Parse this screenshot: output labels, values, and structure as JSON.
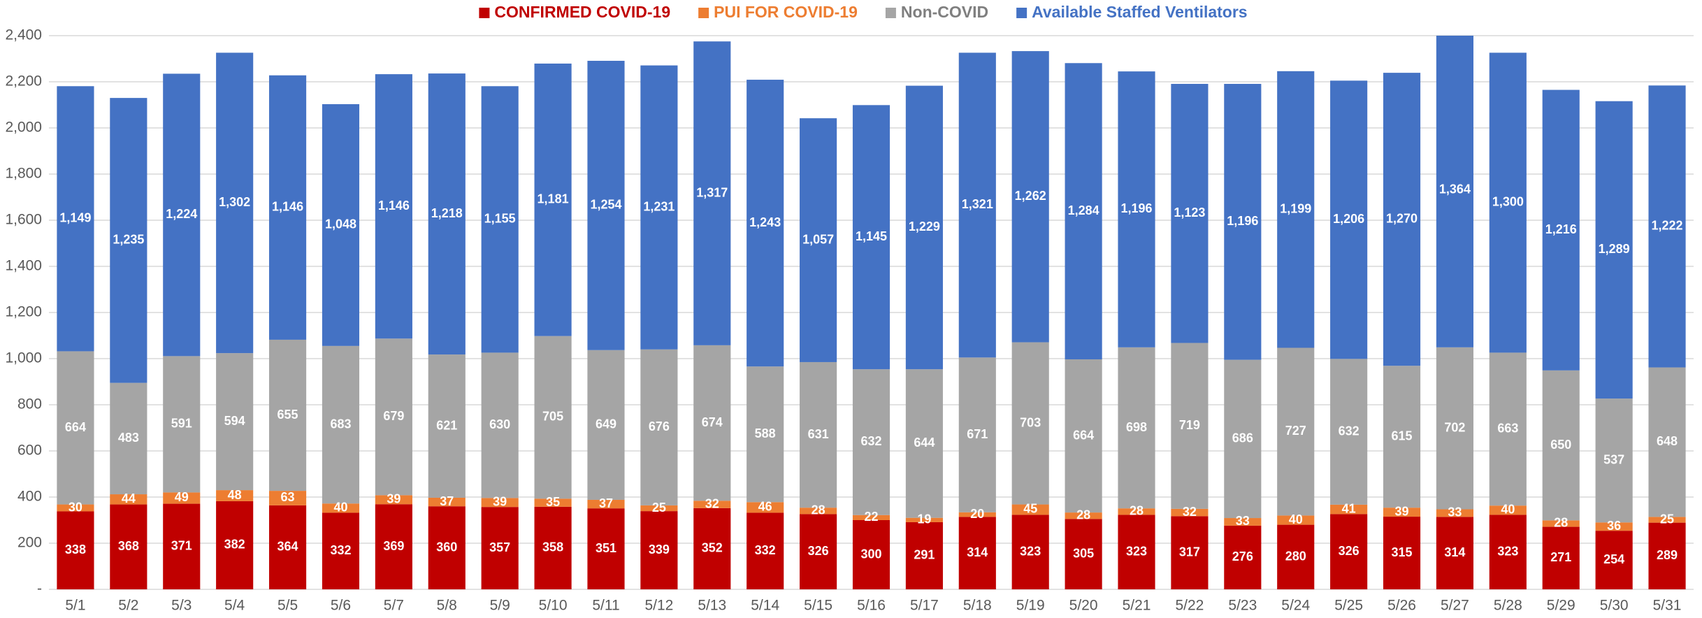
{
  "chart_data": {
    "type": "stacked_bar",
    "categories": [
      "5/1",
      "5/2",
      "5/3",
      "5/4",
      "5/5",
      "5/6",
      "5/7",
      "5/8",
      "5/9",
      "5/10",
      "5/11",
      "5/12",
      "5/13",
      "5/14",
      "5/15",
      "5/16",
      "5/17",
      "5/18",
      "5/19",
      "5/20",
      "5/21",
      "5/22",
      "5/23",
      "5/24",
      "5/25",
      "5/26",
      "5/27",
      "5/28",
      "5/29",
      "5/30",
      "5/31"
    ],
    "series": [
      {
        "name": "CONFIRMED COVID-19",
        "color": "#c00000",
        "values": [
          338,
          368,
          371,
          382,
          364,
          332,
          369,
          360,
          357,
          358,
          351,
          339,
          352,
          332,
          326,
          300,
          291,
          314,
          323,
          305,
          323,
          317,
          276,
          280,
          326,
          315,
          314,
          323,
          271,
          254,
          289
        ]
      },
      {
        "name": "PUI FOR COVID-19",
        "color": "#ed7d31",
        "values": [
          30,
          44,
          49,
          48,
          63,
          40,
          39,
          37,
          39,
          35,
          37,
          25,
          32,
          46,
          28,
          22,
          19,
          20,
          45,
          28,
          28,
          32,
          33,
          40,
          41,
          39,
          33,
          40,
          28,
          36,
          25
        ]
      },
      {
        "name": "Non-COVID",
        "color": "#a5a5a5",
        "values": [
          664,
          483,
          591,
          594,
          655,
          683,
          679,
          621,
          630,
          705,
          649,
          676,
          674,
          588,
          631,
          632,
          644,
          671,
          703,
          664,
          698,
          719,
          686,
          727,
          632,
          615,
          702,
          663,
          650,
          537,
          648
        ]
      },
      {
        "name": "Available Staffed Ventilators",
        "color": "#4472c4",
        "values": [
          1149,
          1235,
          1224,
          1302,
          1146,
          1048,
          1146,
          1218,
          1155,
          1181,
          1254,
          1231,
          1317,
          1243,
          1057,
          1145,
          1229,
          1321,
          1262,
          1284,
          1196,
          1123,
          1196,
          1199,
          1206,
          1270,
          1364,
          1300,
          1216,
          1289,
          1222
        ],
        "value_labels": [
          "1,149",
          "1,235",
          "1,224",
          "1,302",
          "1,146",
          "1,048",
          "1,146",
          "1,218",
          "1,155",
          "1,181",
          "1,254",
          "1,231",
          "1,317",
          "1,243",
          "1,057",
          "1,145",
          "1,229",
          "1,321",
          "1,262",
          "1,284",
          "1,196",
          "1,123",
          "1,196",
          "1,199",
          "1,206",
          "1,270",
          "1,364",
          "1,300",
          "1,216",
          "1,289",
          "1,222"
        ]
      }
    ],
    "ylim": [
      0,
      2400
    ],
    "yticks": [
      {
        "value": 0,
        "label": "-"
      },
      200,
      400,
      600,
      800,
      {
        "value": 1000,
        "label": "1,000"
      },
      {
        "value": 1200,
        "label": "1,200"
      },
      {
        "value": 1400,
        "label": "1,400"
      },
      {
        "value": 1600,
        "label": "1,600"
      },
      {
        "value": 1800,
        "label": "1,800"
      },
      {
        "value": 2000,
        "label": "2,000"
      },
      {
        "value": 2200,
        "label": "2,200"
      },
      {
        "value": 2400,
        "label": "2,400"
      }
    ],
    "grid": true,
    "legend": "top"
  }
}
